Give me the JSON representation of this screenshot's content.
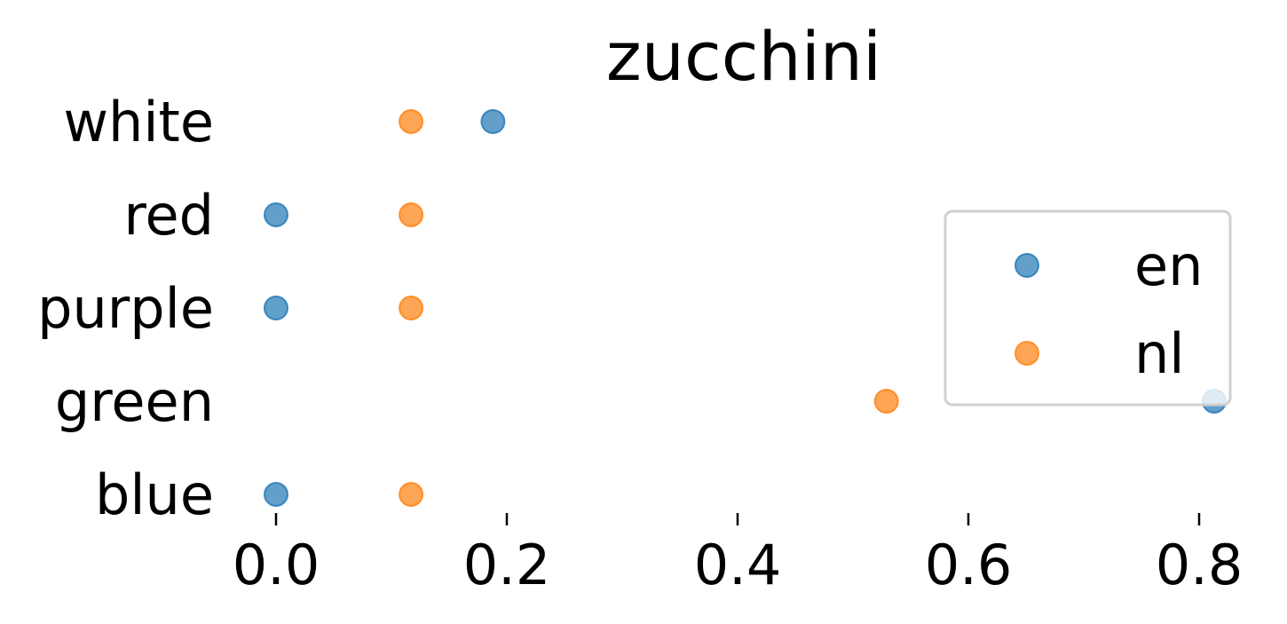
{
  "chart_data": {
    "type": "scatter",
    "title": "zucchini",
    "categories": [
      "white",
      "red",
      "purple",
      "green",
      "blue"
    ],
    "xlim": [
      -0.02,
      0.82
    ],
    "xticks": [
      "0.0",
      "0.2",
      "0.4",
      "0.6",
      "0.8"
    ],
    "xtick_values": [
      0.0,
      0.2,
      0.4,
      0.6,
      0.8
    ],
    "grid": false,
    "legend_position": "right",
    "series": [
      {
        "name": "en",
        "color": "#1f77b4",
        "values": [
          0.188,
          0.0,
          0.0,
          0.813,
          0.0
        ]
      },
      {
        "name": "nl",
        "color": "#ff7f0e",
        "values": [
          0.117,
          0.117,
          0.117,
          0.529,
          0.117
        ]
      }
    ]
  }
}
